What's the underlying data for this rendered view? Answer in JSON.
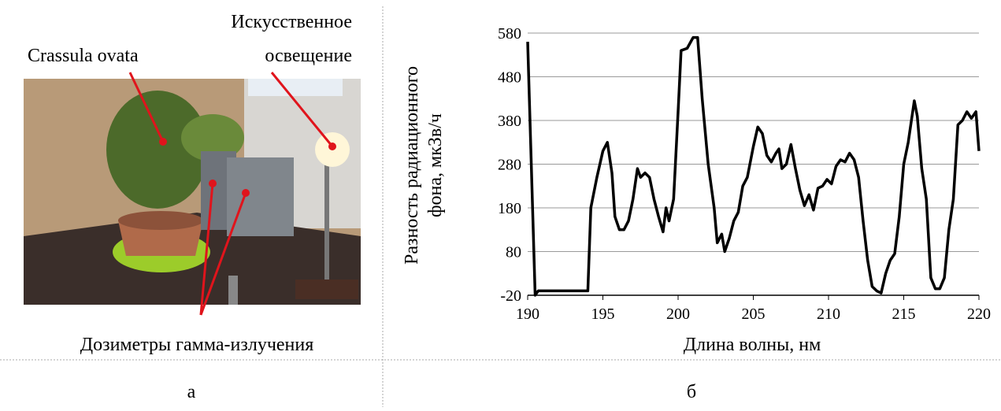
{
  "chart_data": {
    "type": "line",
    "x": [
      190,
      190.5,
      190.7,
      194,
      194.2,
      194.6,
      195,
      195.3,
      195.6,
      195.8,
      196.1,
      196.4,
      196.7,
      197,
      197.3,
      197.5,
      197.8,
      198.1,
      198.4,
      198.7,
      199,
      199.2,
      199.4,
      199.7,
      200,
      200.2,
      200.6,
      201,
      201.3,
      201.6,
      202,
      202.4,
      202.6,
      202.9,
      203.1,
      203.4,
      203.7,
      204,
      204.3,
      204.6,
      205,
      205.3,
      205.6,
      205.9,
      206.2,
      206.5,
      206.7,
      206.9,
      207.2,
      207.5,
      207.8,
      208.1,
      208.4,
      208.7,
      209,
      209.3,
      209.6,
      209.9,
      210.2,
      210.5,
      210.8,
      211.1,
      211.4,
      211.7,
      212,
      212.3,
      212.6,
      212.9,
      213.2,
      213.5,
      213.8,
      214.1,
      214.4,
      214.7,
      215,
      215.3,
      215.7,
      215.9,
      216.2,
      216.5,
      216.8,
      217.1,
      217.4,
      217.7,
      218,
      218.3,
      218.6,
      218.9,
      219.2,
      219.5,
      219.8,
      220
    ],
    "values": [
      560,
      -20,
      -10,
      -10,
      180,
      250,
      310,
      330,
      260,
      160,
      130,
      130,
      150,
      200,
      270,
      250,
      260,
      250,
      200,
      160,
      125,
      180,
      150,
      200,
      400,
      540,
      545,
      570,
      570,
      430,
      280,
      180,
      100,
      120,
      80,
      110,
      150,
      170,
      230,
      250,
      320,
      365,
      350,
      300,
      285,
      305,
      315,
      270,
      280,
      325,
      270,
      220,
      185,
      210,
      175,
      225,
      230,
      245,
      235,
      275,
      290,
      285,
      305,
      290,
      250,
      150,
      60,
      0,
      -10,
      -15,
      30,
      60,
      75,
      160,
      280,
      330,
      425,
      390,
      270,
      200,
      20,
      -5,
      -5,
      20,
      130,
      200,
      370,
      380,
      400,
      385,
      400,
      310
    ],
    "color": "#000000",
    "xlabel": "Длина волны, нм",
    "ylabel": [
      "Разность радиационного",
      "фона, мкЗв/ч"
    ],
    "xlim": [
      190,
      220
    ],
    "xticks": [
      190,
      195,
      200,
      205,
      210,
      215,
      220
    ],
    "ylim": [
      -20,
      580
    ],
    "yticks": [
      -20,
      80,
      180,
      280,
      380,
      480,
      580
    ],
    "grid": true
  },
  "photo": {
    "labels": [
      "Crassula ovata",
      "Искусственное",
      "освещение",
      "Дозиметры гамма-излучения"
    ]
  },
  "captions": [
    "а",
    "б"
  ]
}
